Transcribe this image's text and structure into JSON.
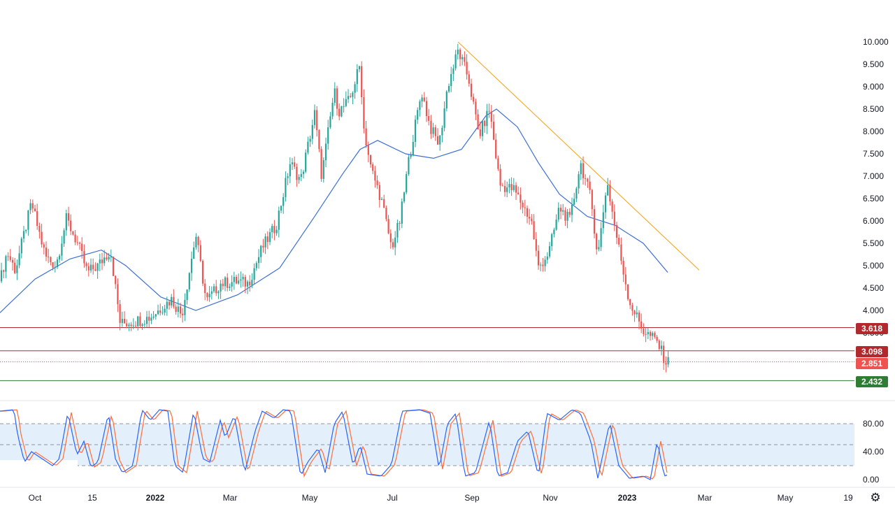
{
  "chart_data": {
    "type": "candlestick",
    "price_axis": {
      "ticks": [
        "10.000",
        "9.500",
        "9.000",
        "8.500",
        "8.000",
        "7.500",
        "7.000",
        "6.500",
        "6.000",
        "5.500",
        "5.000",
        "4.500",
        "4.000",
        "3.500"
      ],
      "ylim": [
        2.2,
        10.1
      ]
    },
    "time_axis": {
      "labels": [
        {
          "text": "Oct",
          "bold": false
        },
        {
          "text": "15",
          "bold": false
        },
        {
          "text": "2022",
          "bold": true
        },
        {
          "text": "Mar",
          "bold": false
        },
        {
          "text": "May",
          "bold": false
        },
        {
          "text": "Jul",
          "bold": false
        },
        {
          "text": "Sep",
          "bold": false
        },
        {
          "text": "Nov",
          "bold": false
        },
        {
          "text": "2023",
          "bold": true
        },
        {
          "text": "Mar",
          "bold": false
        },
        {
          "text": "May",
          "bold": false
        },
        {
          "text": "19",
          "bold": false
        }
      ]
    },
    "price_path": [
      [
        0,
        4.65
      ],
      [
        10,
        5.3
      ],
      [
        22,
        4.9
      ],
      [
        45,
        6.4
      ],
      [
        65,
        5.2
      ],
      [
        80,
        5.0
      ],
      [
        95,
        6.05
      ],
      [
        112,
        5.45
      ],
      [
        125,
        4.85
      ],
      [
        140,
        5.0
      ],
      [
        158,
        5.35
      ],
      [
        172,
        3.7
      ],
      [
        190,
        3.75
      ],
      [
        215,
        3.85
      ],
      [
        245,
        4.25
      ],
      [
        260,
        3.9
      ],
      [
        280,
        5.7
      ],
      [
        295,
        4.2
      ],
      [
        315,
        4.6
      ],
      [
        340,
        4.65
      ],
      [
        355,
        4.6
      ],
      [
        375,
        5.4
      ],
      [
        395,
        5.9
      ],
      [
        415,
        7.3
      ],
      [
        430,
        6.9
      ],
      [
        450,
        8.4
      ],
      [
        460,
        7.0
      ],
      [
        478,
        8.9
      ],
      [
        485,
        8.45
      ],
      [
        500,
        8.7
      ],
      [
        515,
        9.5
      ],
      [
        520,
        8.1
      ],
      [
        530,
        7.2
      ],
      [
        545,
        6.5
      ],
      [
        560,
        5.4
      ],
      [
        572,
        6.0
      ],
      [
        585,
        7.4
      ],
      [
        603,
        8.9
      ],
      [
        615,
        8.1
      ],
      [
        628,
        7.7
      ],
      [
        640,
        9.0
      ],
      [
        655,
        9.8
      ],
      [
        670,
        9.2
      ],
      [
        685,
        7.9
      ],
      [
        700,
        8.5
      ],
      [
        715,
        6.8
      ],
      [
        735,
        6.7
      ],
      [
        760,
        6.0
      ],
      [
        770,
        4.95
      ],
      [
        785,
        5.3
      ],
      [
        800,
        6.3
      ],
      [
        815,
        6.0
      ],
      [
        830,
        7.3
      ],
      [
        845,
        6.5
      ],
      [
        855,
        5.2
      ],
      [
        868,
        6.9
      ],
      [
        880,
        5.8
      ],
      [
        900,
        4.2
      ],
      [
        920,
        3.55
      ],
      [
        940,
        3.3
      ],
      [
        952,
        2.85
      ],
      [
        957,
        2.85
      ]
    ],
    "moving_average": {
      "color": "#3c6fd6",
      "path": [
        [
          0,
          3.95
        ],
        [
          50,
          4.7
        ],
        [
          100,
          5.15
        ],
        [
          145,
          5.35
        ],
        [
          180,
          5.0
        ],
        [
          230,
          4.3
        ],
        [
          280,
          4.0
        ],
        [
          340,
          4.35
        ],
        [
          400,
          4.95
        ],
        [
          450,
          6.1
        ],
        [
          490,
          7.05
        ],
        [
          515,
          7.6
        ],
        [
          540,
          7.8
        ],
        [
          580,
          7.5
        ],
        [
          620,
          7.4
        ],
        [
          660,
          7.6
        ],
        [
          695,
          8.35
        ],
        [
          710,
          8.5
        ],
        [
          740,
          8.1
        ],
        [
          770,
          7.3
        ],
        [
          800,
          6.6
        ],
        [
          840,
          6.1
        ],
        [
          880,
          5.9
        ],
        [
          920,
          5.5
        ],
        [
          955,
          4.85
        ]
      ]
    },
    "trendline": {
      "color": "#f5a623",
      "points": [
        [
          655,
          10.0
        ],
        [
          1000,
          4.9
        ]
      ]
    },
    "horizontal_levels": [
      {
        "label": "3.618",
        "value": 3.618,
        "color": "#b2282c",
        "style": "solid"
      },
      {
        "label": "3.098",
        "value": 3.098,
        "color": "#b2282c",
        "style": "solid"
      },
      {
        "label": "2.851",
        "value": 2.851,
        "color": "#ef5350",
        "style": "dotted"
      },
      {
        "label": "2.432",
        "value": 2.432,
        "color": "#2e7d32",
        "style": "solid"
      }
    ],
    "colors": {
      "up": "#26a69a",
      "down": "#ef5350",
      "border": "#e0e3eb"
    },
    "oscillator": {
      "type": "stochastic",
      "ticks": [
        "80.00",
        "40.00",
        "0.00"
      ],
      "ylim": [
        -5,
        105
      ],
      "bands": {
        "upper": 80,
        "middle": 50,
        "lower": 20
      },
      "band_color": "#e3f0fb",
      "k_color": "#2962ff",
      "d_color": "#ff6d3a",
      "k_path": [
        [
          0,
          98
        ],
        [
          20,
          100
        ],
        [
          25,
          65
        ],
        [
          35,
          25
        ],
        [
          45,
          40
        ],
        [
          60,
          30
        ],
        [
          75,
          20
        ],
        [
          85,
          30
        ],
        [
          97,
          96
        ],
        [
          110,
          35
        ],
        [
          120,
          55
        ],
        [
          130,
          18
        ],
        [
          140,
          25
        ],
        [
          155,
          95
        ],
        [
          165,
          30
        ],
        [
          175,
          10
        ],
        [
          190,
          20
        ],
        [
          203,
          100
        ],
        [
          215,
          85
        ],
        [
          228,
          100
        ],
        [
          240,
          98
        ],
        [
          250,
          20
        ],
        [
          262,
          10
        ],
        [
          277,
          98
        ],
        [
          290,
          30
        ],
        [
          300,
          25
        ],
        [
          315,
          85
        ],
        [
          322,
          60
        ],
        [
          335,
          92
        ],
        [
          350,
          10
        ],
        [
          365,
          70
        ],
        [
          375,
          98
        ],
        [
          392,
          88
        ],
        [
          405,
          100
        ],
        [
          416,
          98
        ],
        [
          430,
          5
        ],
        [
          440,
          25
        ],
        [
          455,
          45
        ],
        [
          465,
          10
        ],
        [
          478,
          80
        ],
        [
          490,
          98
        ],
        [
          505,
          20
        ],
        [
          515,
          50
        ],
        [
          525,
          8
        ],
        [
          545,
          5
        ],
        [
          560,
          22
        ],
        [
          575,
          98
        ],
        [
          600,
          100
        ],
        [
          615,
          95
        ],
        [
          628,
          15
        ],
        [
          640,
          80
        ],
        [
          652,
          95
        ],
        [
          665,
          5
        ],
        [
          680,
          10
        ],
        [
          700,
          85
        ],
        [
          712,
          5
        ],
        [
          726,
          10
        ],
        [
          740,
          55
        ],
        [
          755,
          70
        ],
        [
          770,
          5
        ],
        [
          782,
          95
        ],
        [
          800,
          85
        ],
        [
          818,
          100
        ],
        [
          830,
          95
        ],
        [
          845,
          55
        ],
        [
          855,
          2
        ],
        [
          872,
          82
        ],
        [
          885,
          20
        ],
        [
          900,
          2
        ],
        [
          920,
          5
        ],
        [
          930,
          0
        ],
        [
          940,
          55
        ],
        [
          950,
          5
        ],
        [
          955,
          7
        ]
      ]
    }
  }
}
